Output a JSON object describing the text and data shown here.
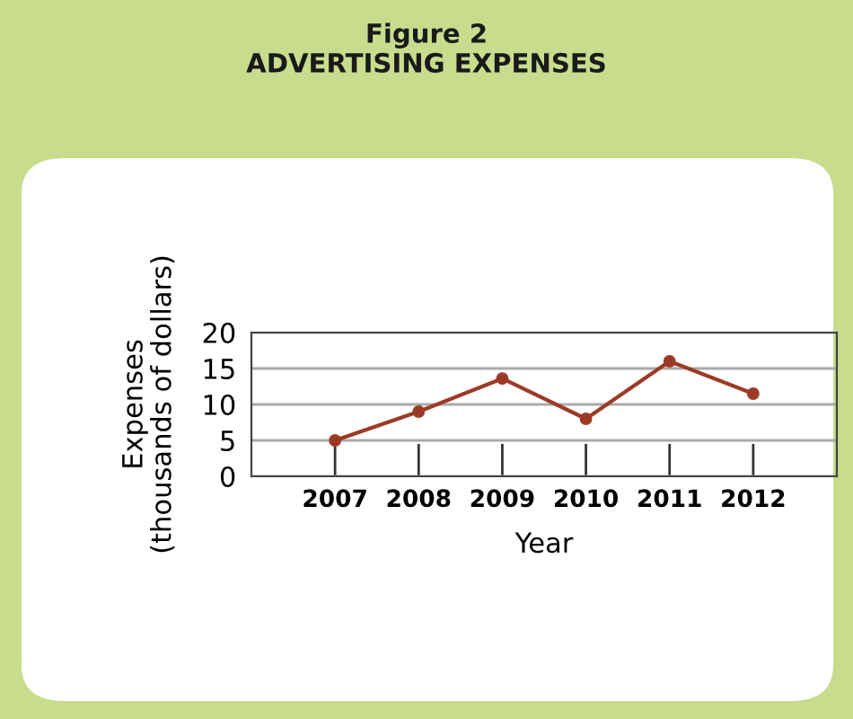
{
  "chart_data": {
    "type": "line",
    "title": "Figure 2\nADVERTISING EXPENSES",
    "xlabel": "Year",
    "ylabel": "Expenses\n(thousands of dollars)",
    "categories": [
      "2007",
      "2008",
      "2009",
      "2010",
      "2011",
      "2012"
    ],
    "series": [
      {
        "color": "#9b3b26",
        "values": [
          5,
          9,
          13.6,
          8,
          16,
          11.5
        ]
      }
    ],
    "ylim": [
      0,
      20
    ],
    "yticks": [
      0,
      5,
      10,
      15,
      20
    ],
    "grid": "y",
    "marker": "circle",
    "line_style": "solid",
    "legend": false
  }
}
